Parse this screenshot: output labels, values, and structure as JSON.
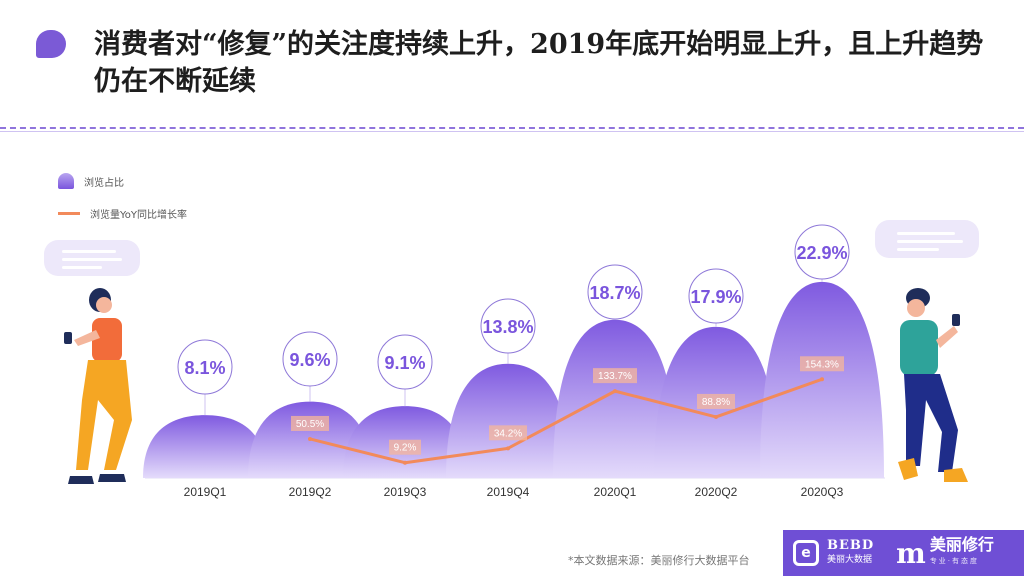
{
  "header": {
    "title": "消费者对“修复”的关注度持续上升，2019年底开始明显上升，且上升趋势仍在不断延续"
  },
  "legend": {
    "share_label": "浏览占比",
    "growth_label": "浏览量YoY同比增长率"
  },
  "chart_data": {
    "type": "bar",
    "categories": [
      "2019Q1",
      "2019Q2",
      "2019Q3",
      "2019Q4",
      "2020Q1",
      "2020Q2",
      "2020Q3"
    ],
    "series": [
      {
        "name": "浏览占比",
        "unit": "%",
        "values": [
          8.1,
          9.6,
          9.1,
          13.8,
          18.7,
          17.9,
          22.9
        ],
        "labels": [
          "8.1%",
          "9.6%",
          "9.1%",
          "13.8%",
          "18.7%",
          "17.9%",
          "22.9%"
        ]
      },
      {
        "name": "浏览量YoY同比增长率",
        "type": "line",
        "unit": "%",
        "values": [
          null,
          50.5,
          9.2,
          34.2,
          133.7,
          88.8,
          154.3
        ],
        "labels": [
          "",
          "50.5%",
          "9.2%",
          "34.2%",
          "133.7%",
          "88.8%",
          "154.3%"
        ]
      }
    ],
    "colors": {
      "bar_top": "#c4b4f4",
      "bar_bottom": "#7a55dd",
      "line": "#f28a5b",
      "label_circle": "#8e78d8",
      "label_text": "#7a55dd"
    }
  },
  "footer": {
    "source": "*本文数据来源：美丽修行大数据平台",
    "brand_bebd": "BEBD",
    "brand_bebd_sub": "美丽大数据",
    "brand_m": "m",
    "brand_name": "美丽修行",
    "brand_name_sub": "专业·有态度"
  }
}
